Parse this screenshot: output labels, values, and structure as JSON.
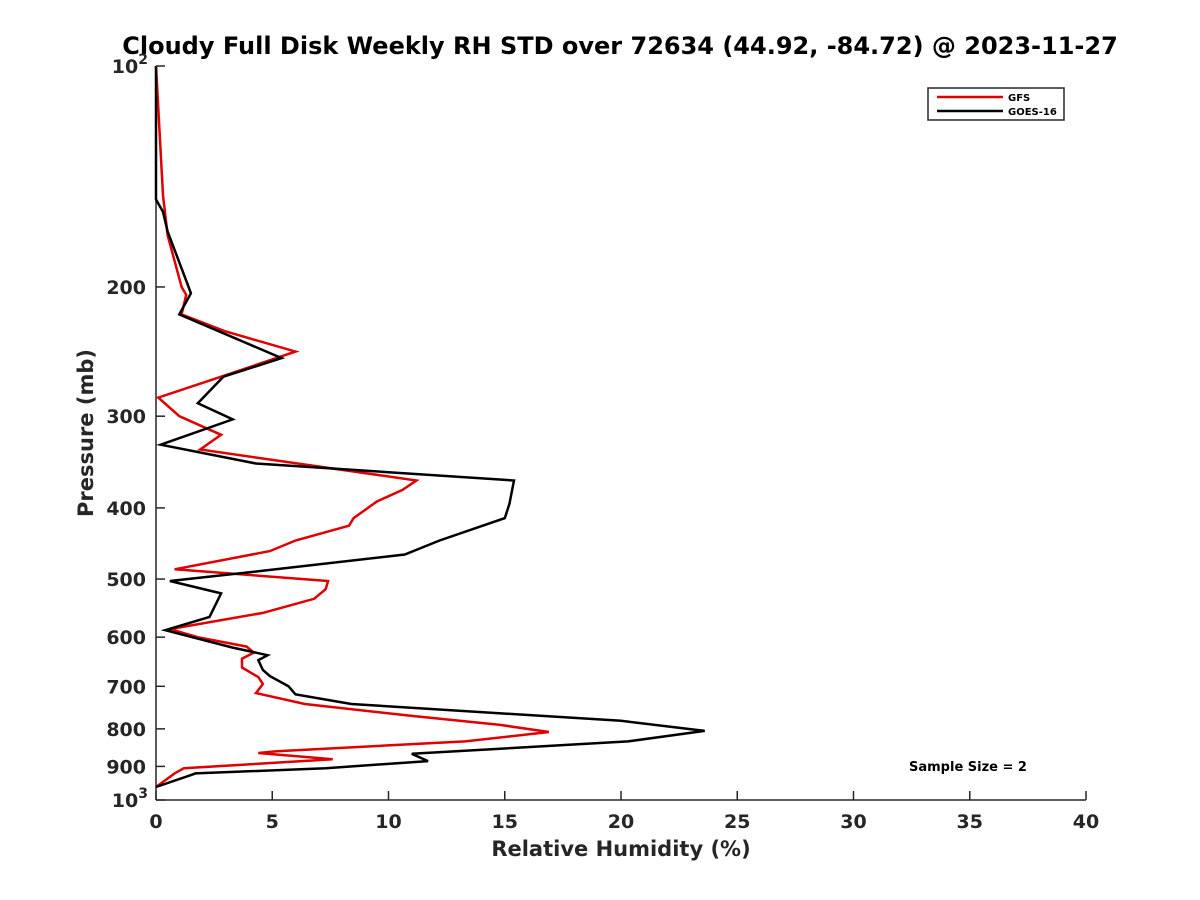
{
  "chart_data": {
    "type": "line",
    "title": "Cloudy Full Disk Weekly RH STD over 72634 (44.92, -84.72) @ 2023-11-27",
    "xlabel": "Relative Humidity (%)",
    "ylabel": "Pressure (mb)",
    "xlim": [
      0,
      40
    ],
    "ylim": [
      100,
      1000
    ],
    "yscale": "log",
    "y_reversed": true,
    "xticks": [
      0,
      5,
      10,
      15,
      20,
      25,
      30,
      35,
      40
    ],
    "yticks": [
      {
        "value": 100,
        "label": "10",
        "sup": "2"
      },
      {
        "value": 200,
        "label": "200",
        "sup": ""
      },
      {
        "value": 300,
        "label": "300",
        "sup": ""
      },
      {
        "value": 400,
        "label": "400",
        "sup": ""
      },
      {
        "value": 500,
        "label": "500",
        "sup": ""
      },
      {
        "value": 600,
        "label": "600",
        "sup": ""
      },
      {
        "value": 700,
        "label": "700",
        "sup": ""
      },
      {
        "value": 800,
        "label": "800",
        "sup": ""
      },
      {
        "value": 900,
        "label": "900",
        "sup": ""
      },
      {
        "value": 1000,
        "label": "10",
        "sup": "3"
      }
    ],
    "grid": false,
    "legend_position": "top-right",
    "annotation": "Sample Size = 2",
    "series": [
      {
        "name": "GFS",
        "color": "#e00000",
        "points": [
          [
            0.0,
            100
          ],
          [
            0.3,
            150
          ],
          [
            0.5,
            170
          ],
          [
            1.1,
            200
          ],
          [
            1.3,
            205
          ],
          [
            1.1,
            218
          ],
          [
            3.0,
            230
          ],
          [
            6.0,
            245
          ],
          [
            2.8,
            265
          ],
          [
            0.1,
            283
          ],
          [
            1.0,
            300
          ],
          [
            2.8,
            318
          ],
          [
            1.9,
            333
          ],
          [
            11.2,
            367
          ],
          [
            10.6,
            378
          ],
          [
            9.5,
            392
          ],
          [
            8.5,
            413
          ],
          [
            8.3,
            423
          ],
          [
            6.0,
            443
          ],
          [
            4.9,
            458
          ],
          [
            0.8,
            485
          ],
          [
            7.4,
            503
          ],
          [
            7.3,
            516
          ],
          [
            6.8,
            532
          ],
          [
            4.6,
            556
          ],
          [
            0.6,
            585
          ],
          [
            1.8,
            600
          ],
          [
            3.9,
            618
          ],
          [
            4.2,
            630
          ],
          [
            3.7,
            642
          ],
          [
            3.7,
            660
          ],
          [
            4.4,
            680
          ],
          [
            4.6,
            695
          ],
          [
            4.3,
            715
          ],
          [
            6.4,
            740
          ],
          [
            11.0,
            768
          ],
          [
            14.8,
            790
          ],
          [
            16.9,
            808
          ],
          [
            13.3,
            832
          ],
          [
            5.2,
            858
          ],
          [
            4.4,
            863
          ],
          [
            7.6,
            880
          ],
          [
            1.2,
            905
          ],
          [
            0.8,
            920
          ],
          [
            0.7,
            925
          ],
          [
            0.0,
            960
          ]
        ]
      },
      {
        "name": "GOES-16",
        "color": "#000000",
        "points": [
          [
            0.0,
            100
          ],
          [
            0.0,
            152
          ],
          [
            0.3,
            158
          ],
          [
            0.5,
            168
          ],
          [
            1.4,
            200
          ],
          [
            1.5,
            204
          ],
          [
            1.0,
            218
          ],
          [
            5.4,
            250
          ],
          [
            2.9,
            265
          ],
          [
            1.8,
            288
          ],
          [
            3.3,
            303
          ],
          [
            0.2,
            328
          ],
          [
            4.3,
            348
          ],
          [
            15.4,
            367
          ],
          [
            15.2,
            395
          ],
          [
            15.0,
            413
          ],
          [
            12.2,
            443
          ],
          [
            10.7,
            463
          ],
          [
            4.4,
            488
          ],
          [
            0.6,
            503
          ],
          [
            2.8,
            523
          ],
          [
            2.3,
            563
          ],
          [
            0.4,
            587
          ],
          [
            3.3,
            620
          ],
          [
            4.8,
            635
          ],
          [
            4.4,
            645
          ],
          [
            4.6,
            665
          ],
          [
            4.9,
            678
          ],
          [
            5.7,
            700
          ],
          [
            6.0,
            718
          ],
          [
            8.4,
            740
          ],
          [
            20.0,
            780
          ],
          [
            23.6,
            805
          ],
          [
            20.3,
            832
          ],
          [
            11.0,
            865
          ],
          [
            11.7,
            885
          ],
          [
            7.3,
            905
          ],
          [
            1.7,
            920
          ],
          [
            1.5,
            925
          ],
          [
            0.0,
            960
          ]
        ]
      }
    ]
  }
}
